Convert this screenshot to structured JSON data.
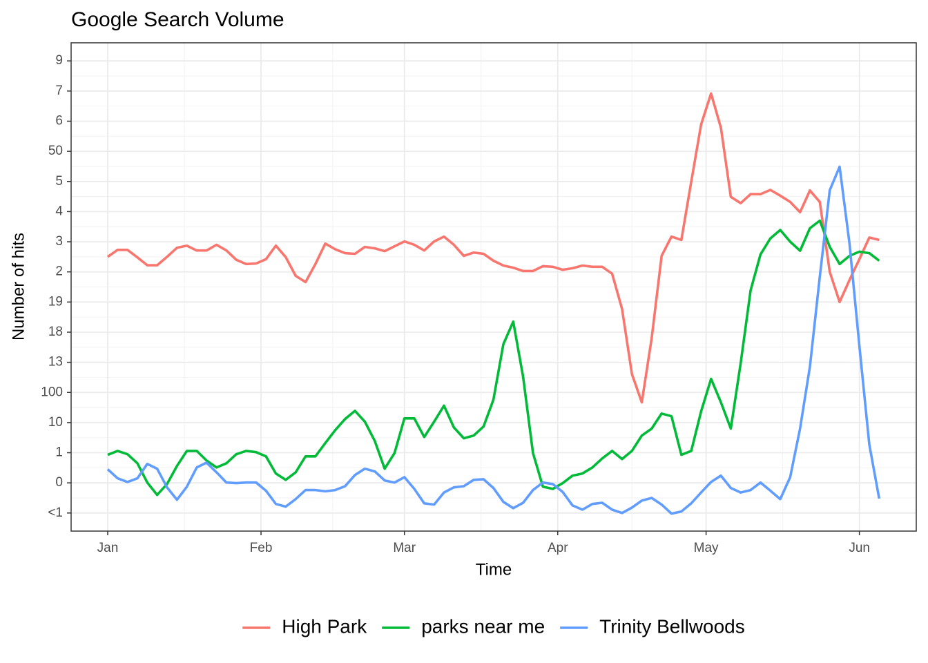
{
  "chart_data": {
    "type": "line",
    "title": "Google Search Volume",
    "x_label": "Time",
    "y_label": "Number of hits",
    "x": [
      0,
      2,
      4,
      6,
      8,
      10,
      12,
      14,
      16,
      18,
      20,
      22,
      24,
      26,
      28,
      30,
      32,
      34,
      36,
      38,
      40,
      42,
      44,
      46,
      48,
      50,
      52,
      54,
      56,
      58,
      60,
      62,
      64,
      66,
      68,
      70,
      72,
      74,
      76,
      78,
      80,
      82,
      84,
      86,
      88,
      90,
      92,
      94,
      96,
      98,
      100,
      102,
      104,
      106,
      108,
      110,
      112,
      114,
      116,
      118,
      120,
      122,
      124,
      126,
      128,
      130,
      132,
      134,
      136,
      138,
      140,
      142,
      144,
      146,
      148,
      150,
      152,
      154,
      156
    ],
    "series": [
      {
        "name": "High Park",
        "color": "#F8766D",
        "values": [
          9.5,
          9.73,
          9.73,
          9.48,
          9.22,
          9.22,
          9.5,
          9.8,
          9.87,
          9.71,
          9.71,
          9.9,
          9.71,
          9.4,
          9.26,
          9.28,
          9.42,
          9.87,
          9.49,
          8.87,
          8.66,
          9.26,
          9.94,
          9.75,
          9.62,
          9.6,
          9.83,
          9.78,
          9.69,
          9.85,
          10.01,
          9.9,
          9.71,
          10.01,
          10.17,
          9.9,
          9.53,
          9.64,
          9.6,
          9.37,
          9.21,
          9.14,
          9.03,
          9.03,
          9.19,
          9.17,
          9.07,
          9.12,
          9.21,
          9.17,
          9.17,
          8.94,
          7.77,
          5.61,
          4.67,
          6.8,
          9.53,
          10.17,
          10.06,
          11.99,
          13.89,
          14.92,
          13.78,
          11.49,
          11.28,
          11.58,
          11.58,
          11.72,
          11.53,
          11.32,
          10.98,
          11.7,
          11.32,
          9.0,
          8.0,
          8.73,
          9.42,
          10.14,
          10.06
        ]
      },
      {
        "name": "parks near me",
        "color": "#00BA38",
        "values": [
          2.93,
          3.06,
          2.95,
          2.65,
          2.01,
          1.6,
          1.96,
          2.56,
          3.06,
          3.06,
          2.74,
          2.51,
          2.65,
          2.95,
          3.06,
          3.02,
          2.88,
          2.31,
          2.1,
          2.35,
          2.88,
          2.88,
          3.32,
          3.75,
          4.12,
          4.39,
          4.03,
          3.39,
          2.47,
          2.99,
          4.14,
          4.14,
          3.52,
          4.03,
          4.56,
          3.84,
          3.48,
          3.57,
          3.87,
          4.76,
          6.6,
          7.35,
          5.52,
          2.99,
          1.87,
          1.8,
          1.99,
          2.24,
          2.31,
          2.51,
          2.81,
          3.06,
          2.79,
          3.06,
          3.57,
          3.8,
          4.3,
          4.21,
          2.93,
          3.06,
          4.37,
          5.45,
          4.67,
          3.8,
          5.97,
          8.39,
          9.58,
          10.11,
          10.39,
          10.0,
          9.7,
          10.45,
          10.7,
          9.83,
          9.26,
          9.53,
          9.67,
          9.62,
          9.37
        ]
      },
      {
        "name": "Trinity Bellwoods",
        "color": "#619CFF",
        "values": [
          2.45,
          2.15,
          2.03,
          2.15,
          2.63,
          2.47,
          1.85,
          1.44,
          1.87,
          2.51,
          2.67,
          2.35,
          2.01,
          1.99,
          2.01,
          2.01,
          1.74,
          1.3,
          1.21,
          1.46,
          1.76,
          1.76,
          1.72,
          1.76,
          1.89,
          2.26,
          2.47,
          2.38,
          2.08,
          2.01,
          2.19,
          1.8,
          1.32,
          1.28,
          1.68,
          1.85,
          1.89,
          2.1,
          2.12,
          1.83,
          1.37,
          1.16,
          1.34,
          1.76,
          2.01,
          1.96,
          1.7,
          1.25,
          1.11,
          1.3,
          1.34,
          1.11,
          1.0,
          1.18,
          1.41,
          1.5,
          1.28,
          0.98,
          1.05,
          1.32,
          1.68,
          2.03,
          2.24,
          1.83,
          1.68,
          1.76,
          2.01,
          1.74,
          1.46,
          2.19,
          3.8,
          5.86,
          8.84,
          11.71,
          12.49,
          9.94,
          6.55,
          3.27,
          1.48
        ]
      }
    ],
    "xlim": [
      -7.4,
      163.5
    ],
    "xticks": [
      {
        "value": 0,
        "label": "Jan"
      },
      {
        "value": 31,
        "label": "Feb"
      },
      {
        "value": 60,
        "label": "Mar"
      },
      {
        "value": 91,
        "label": "Apr"
      },
      {
        "value": 121,
        "label": "May"
      },
      {
        "value": 152,
        "label": "Jun"
      }
    ],
    "ylim": [
      0.4,
      16.6
    ],
    "yticks": [
      {
        "value": 1,
        "label": "<1"
      },
      {
        "value": 2,
        "label": "0"
      },
      {
        "value": 3,
        "label": "1"
      },
      {
        "value": 4,
        "label": "10"
      },
      {
        "value": 5,
        "label": "100"
      },
      {
        "value": 6,
        "label": "13"
      },
      {
        "value": 7,
        "label": "18"
      },
      {
        "value": 8,
        "label": "19"
      },
      {
        "value": 9,
        "label": "2"
      },
      {
        "value": 10,
        "label": "3"
      },
      {
        "value": 11,
        "label": "4"
      },
      {
        "value": 12,
        "label": "5"
      },
      {
        "value": 13,
        "label": "50"
      },
      {
        "value": 14,
        "label": "6"
      },
      {
        "value": 15,
        "label": "7"
      },
      {
        "value": 16,
        "label": "9"
      }
    ],
    "grid": true,
    "legend": "bottom"
  }
}
